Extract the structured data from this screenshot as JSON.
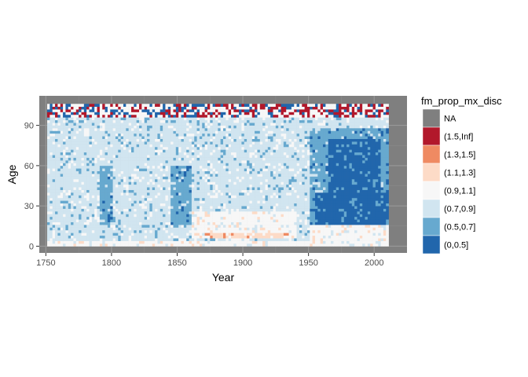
{
  "chart_data": {
    "type": "heatmap",
    "xlabel": "Year",
    "ylabel": "Age",
    "xlim": [
      1745,
      2025
    ],
    "ylim": [
      -5,
      112
    ],
    "x_ticks": [
      1750,
      1800,
      1850,
      1900,
      1950,
      2000
    ],
    "y_ticks": [
      0,
      30,
      60,
      90
    ],
    "panel_background": "#7f7f7f",
    "grid": true,
    "legend": {
      "title": "fm_prop_mx_disc",
      "position": "right",
      "entries": [
        {
          "label": "NA",
          "color": "#7f7f7f"
        },
        {
          "label": "(1.5,Inf]",
          "color": "#b2182b"
        },
        {
          "label": "(1.3,1.5]",
          "color": "#ef8a62"
        },
        {
          "label": "(1.1,1.3]",
          "color": "#fddbc7"
        },
        {
          "label": "(0.9,1.1]",
          "color": "#f7f7f7"
        },
        {
          "label": "(0.7,0.9]",
          "color": "#d1e5f0"
        },
        {
          "label": "(0.5,0.7]",
          "color": "#67a9cf"
        },
        {
          "label": "(0,0.5]",
          "color": "#2166ac"
        }
      ]
    },
    "data_extent": {
      "year_range": [
        1751,
        2011
      ],
      "age_range": [
        0,
        105
      ]
    },
    "regions": [
      {
        "years": [
          1751,
          2011
        ],
        "ages": [
          0,
          105
        ],
        "category": "(0.9,1.1]"
      },
      {
        "years": [
          1751,
          1950
        ],
        "ages": [
          3,
          100
        ],
        "category": "(0.7,0.9]"
      },
      {
        "years": [
          1950,
          2011
        ],
        "ages": [
          40,
          100
        ],
        "category": "(0.7,0.9]"
      },
      {
        "years": [
          1950,
          2011
        ],
        "ages": [
          15,
          88
        ],
        "category": "(0.5,0.7]"
      },
      {
        "years": [
          1955,
          2011
        ],
        "ages": [
          15,
          40
        ],
        "category": "(0,0.5]"
      },
      {
        "years": [
          1965,
          2005
        ],
        "ages": [
          40,
          80
        ],
        "category": "(0,0.5]"
      },
      {
        "years": [
          1790,
          1800
        ],
        "ages": [
          15,
          60
        ],
        "category": "(0.5,0.7]"
      },
      {
        "years": [
          1845,
          1860
        ],
        "ages": [
          15,
          60
        ],
        "category": "(0.5,0.7]"
      },
      {
        "years": [
          1860,
          1940
        ],
        "ages": [
          5,
          25
        ],
        "category": "(0.9,1.1]"
      },
      {
        "years": [
          1870,
          1935
        ],
        "ages": [
          7,
          9
        ],
        "category": "(1.3,1.5]"
      },
      {
        "years": [
          1875,
          1930
        ],
        "ages": [
          6,
          10
        ],
        "category": "(1.1,1.3]"
      },
      {
        "years": [
          1751,
          2011
        ],
        "ages": [
          95,
          106
        ],
        "category": "(1.5,Inf]"
      }
    ]
  }
}
